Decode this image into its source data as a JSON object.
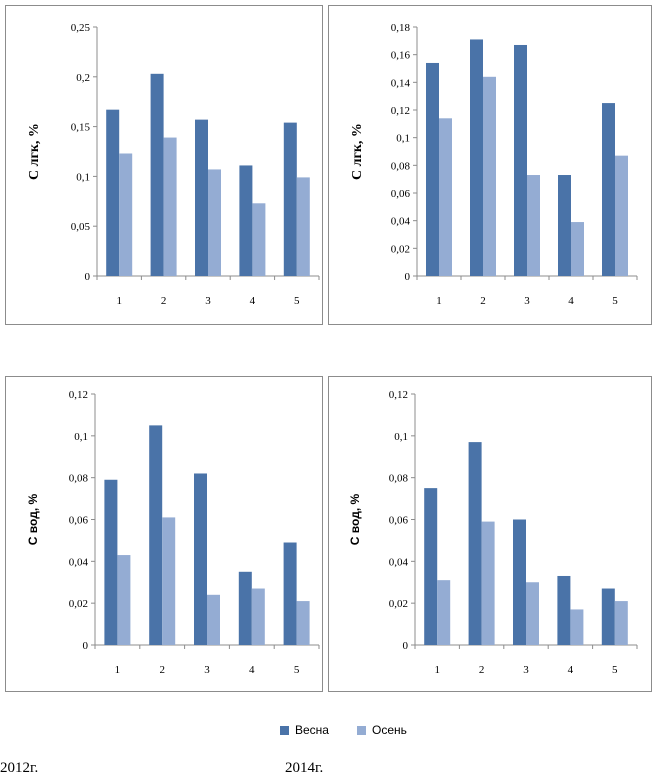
{
  "colors": {
    "spring": "#4a73a8",
    "autumn": "#94acd3",
    "axis": "#8c8c8c"
  },
  "legend": {
    "spring": "Весна",
    "autumn": "Осень"
  },
  "captions": {
    "left": "2012г.",
    "right": "2014г."
  },
  "chart_data": [
    {
      "type": "bar",
      "ylabel": "С лгк, %",
      "categories": [
        "1",
        "2",
        "3",
        "4",
        "5"
      ],
      "ylim": [
        0,
        0.25
      ],
      "yticks": [
        "0",
        "0,05",
        "0,1",
        "0,15",
        "0,2",
        "0,25"
      ],
      "series": [
        {
          "name": "Весна",
          "values": [
            0.167,
            0.203,
            0.157,
            0.111,
            0.154
          ]
        },
        {
          "name": "Осень",
          "values": [
            0.123,
            0.139,
            0.107,
            0.073,
            0.099
          ]
        }
      ]
    },
    {
      "type": "bar",
      "ylabel": "С лгк, %",
      "categories": [
        "1",
        "2",
        "3",
        "4",
        "5"
      ],
      "ylim": [
        0,
        0.18
      ],
      "yticks": [
        "0",
        "0,02",
        "0,04",
        "0,06",
        "0,08",
        "0,1",
        "0,12",
        "0,14",
        "0,16",
        "0,18"
      ],
      "series": [
        {
          "name": "Весна",
          "values": [
            0.154,
            0.171,
            0.167,
            0.073,
            0.125
          ]
        },
        {
          "name": "Осень",
          "values": [
            0.114,
            0.144,
            0.073,
            0.039,
            0.087
          ]
        }
      ]
    },
    {
      "type": "bar",
      "ylabel": "С вод, %",
      "categories": [
        "1",
        "2",
        "3",
        "4",
        "5"
      ],
      "ylim": [
        0,
        0.12
      ],
      "yticks": [
        "0",
        "0,02",
        "0,04",
        "0,06",
        "0,08",
        "0,1",
        "0,12"
      ],
      "series": [
        {
          "name": "Весна",
          "values": [
            0.079,
            0.105,
            0.082,
            0.035,
            0.049
          ]
        },
        {
          "name": "Осень",
          "values": [
            0.043,
            0.061,
            0.024,
            0.027,
            0.021
          ]
        }
      ]
    },
    {
      "type": "bar",
      "ylabel": "С вод, %",
      "categories": [
        "1",
        "2",
        "3",
        "4",
        "5"
      ],
      "ylim": [
        0,
        0.12
      ],
      "yticks": [
        "0",
        "0,02",
        "0,04",
        "0,06",
        "0,08",
        "0,1",
        "0,12"
      ],
      "series": [
        {
          "name": "Весна",
          "values": [
            0.075,
            0.097,
            0.06,
            0.033,
            0.027
          ]
        },
        {
          "name": "Осень",
          "values": [
            0.031,
            0.059,
            0.03,
            0.017,
            0.021
          ]
        }
      ]
    }
  ]
}
